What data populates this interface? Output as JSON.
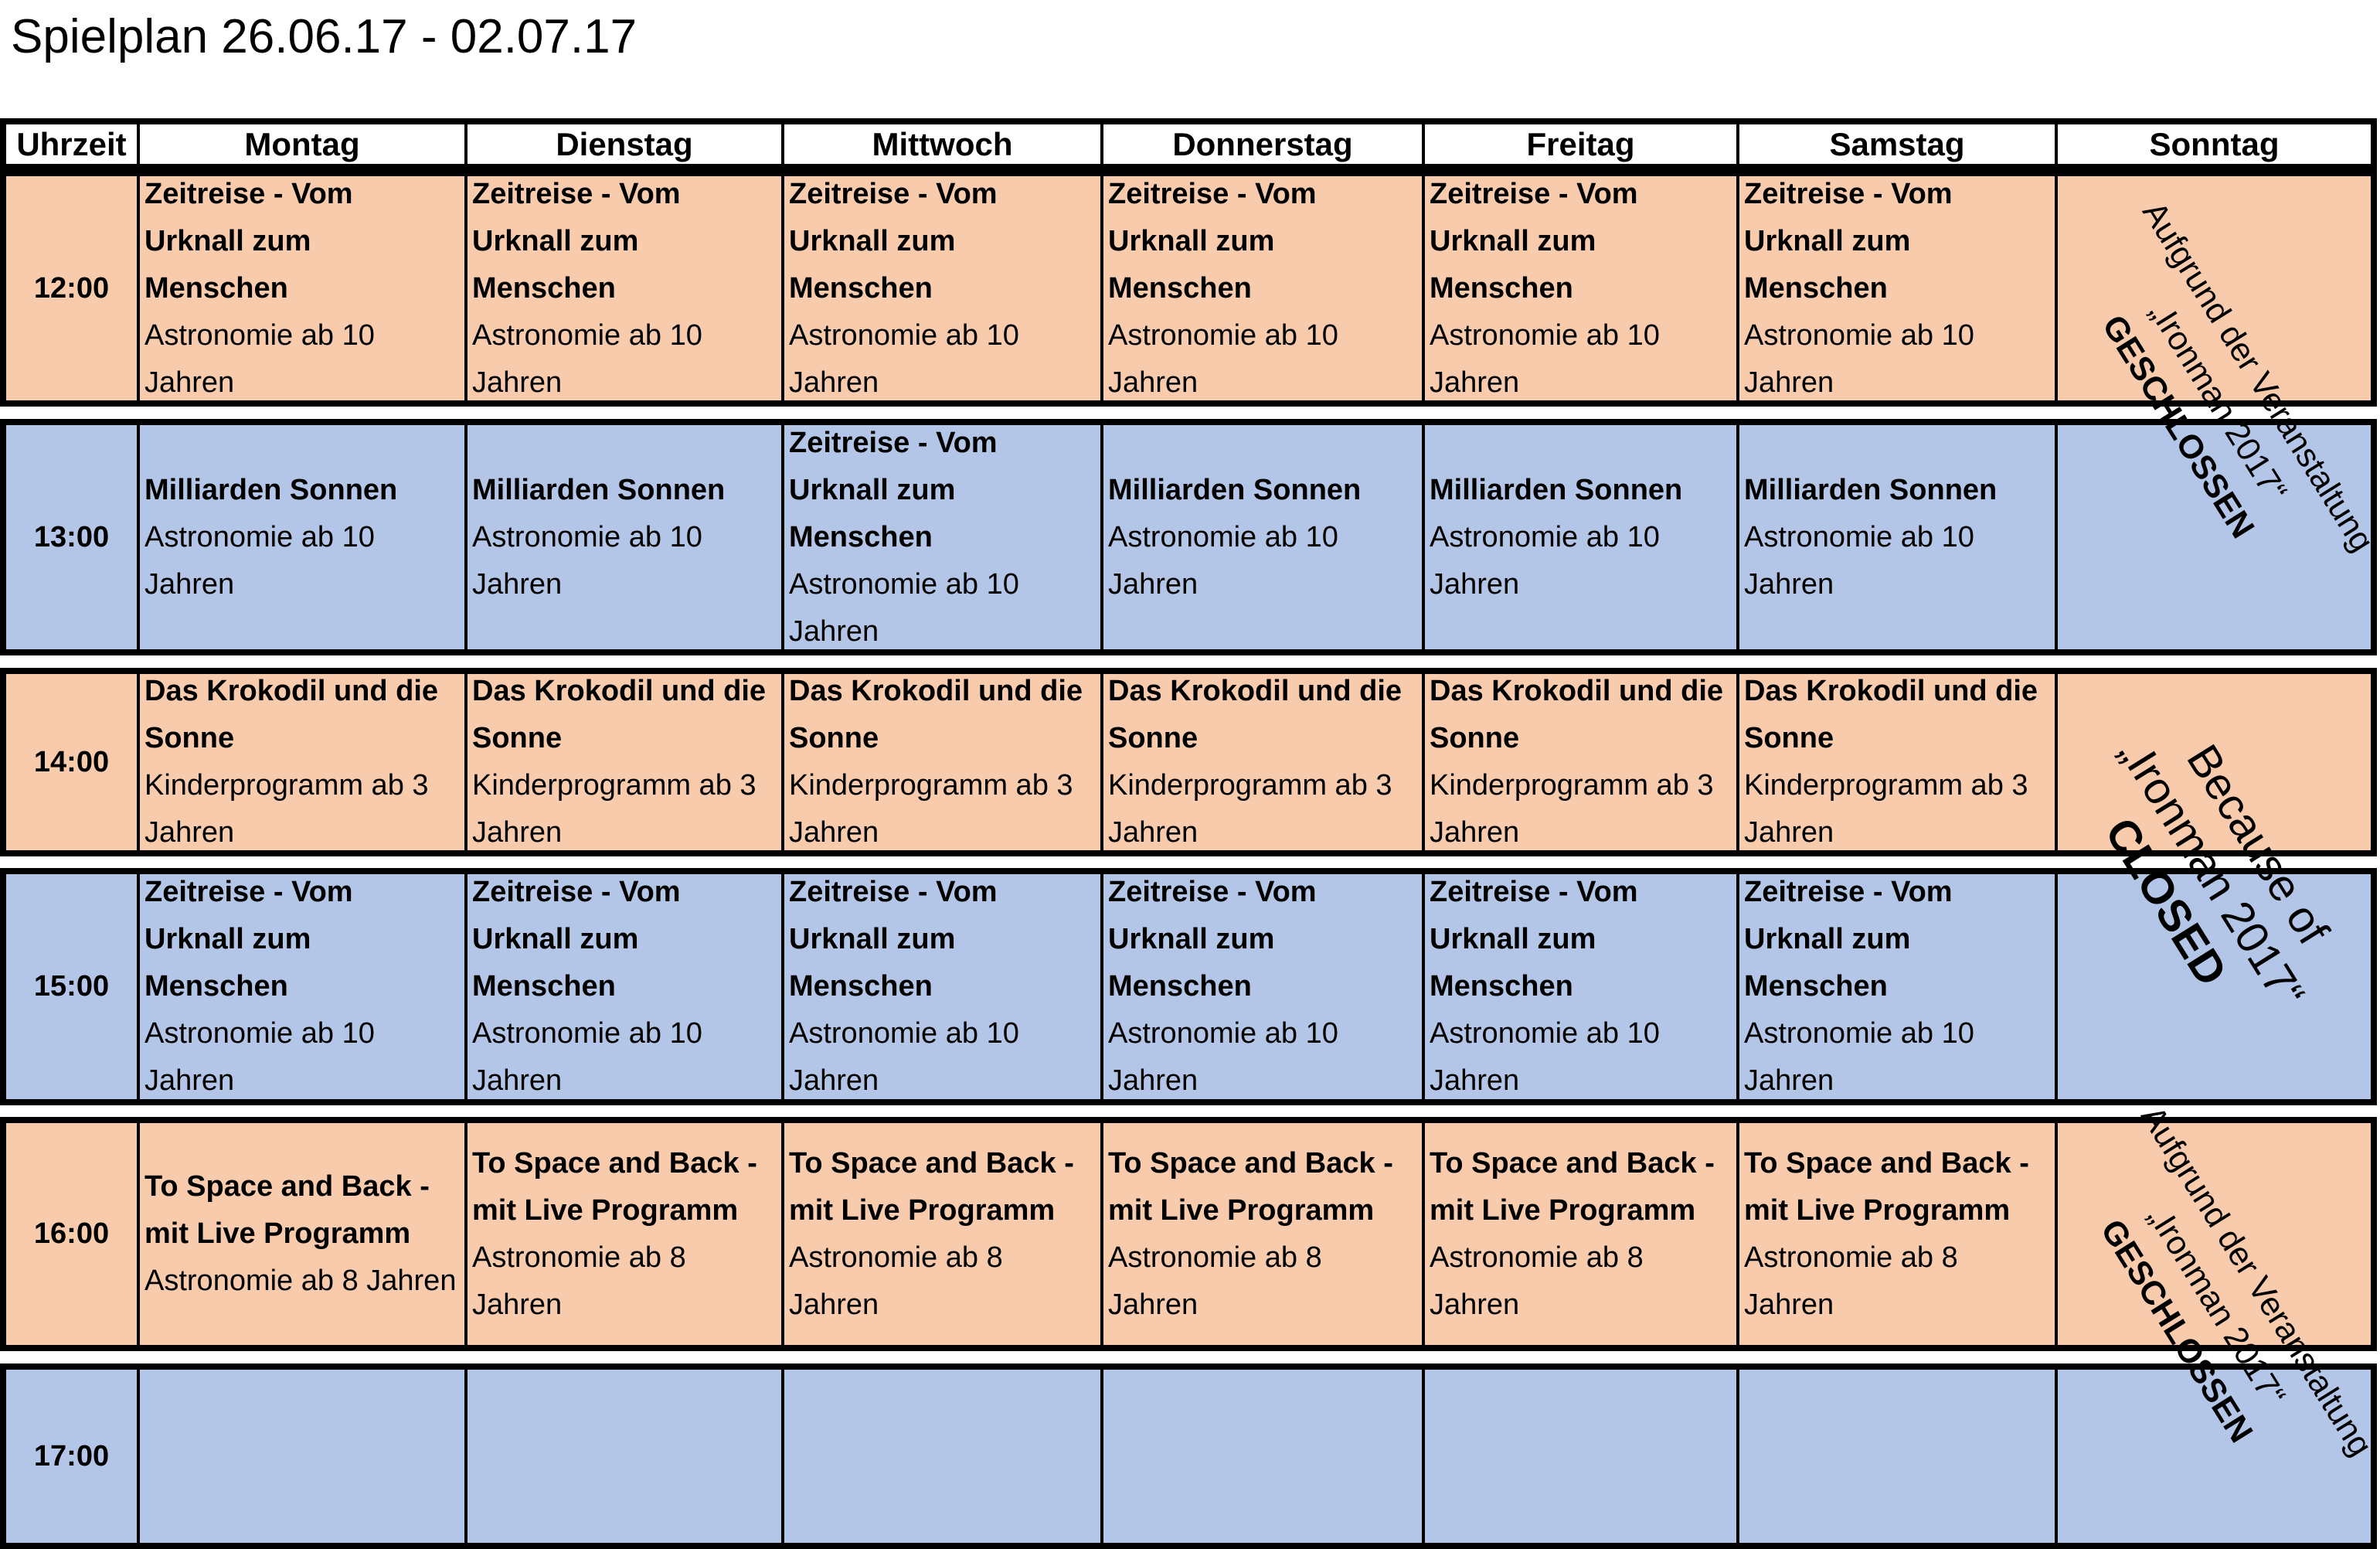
{
  "title": "Spielplan 26.06.17 - 02.07.17",
  "header": [
    "Uhrzeit",
    "Montag",
    "Dienstag",
    "Mittwoch",
    "Donnerstag",
    "Freitag",
    "Samstag",
    "Sonntag"
  ],
  "colors": {
    "peach": "#F8CBAD",
    "blue": "#B4C6E7",
    "border": "#000000"
  },
  "rows": [
    {
      "time": "12:00",
      "color": "peach",
      "cells": [
        {
          "title": "Zeitreise  - Vom Urknall zum Menschen",
          "subtitle": "Astronomie ab 10 Jahren"
        },
        {
          "title": "Zeitreise  - Vom Urknall zum Menschen",
          "subtitle": "Astronomie ab 10 Jahren"
        },
        {
          "title": "Zeitreise  - Vom Urknall zum Menschen",
          "subtitle": "Astronomie ab 10 Jahren"
        },
        {
          "title": "Zeitreise  - Vom Urknall zum Menschen",
          "subtitle": "Astronomie ab 10 Jahren"
        },
        {
          "title": "Zeitreise  - Vom Urknall zum Menschen",
          "subtitle": "Astronomie ab 10 Jahren"
        },
        {
          "title": "Zeitreise  - Vom Urknall zum Menschen",
          "subtitle": "Astronomie ab 10 Jahren"
        },
        {
          "title": "",
          "subtitle": ""
        }
      ]
    },
    {
      "time": "13:00",
      "color": "blue",
      "cells": [
        {
          "title": "Milliarden Sonnen",
          "subtitle": "Astronomie ab 10 Jahren"
        },
        {
          "title": "Milliarden Sonnen",
          "subtitle": "Astronomie ab 10 Jahren"
        },
        {
          "title": "Zeitreise  - Vom Urknall zum Menschen",
          "subtitle": "Astronomie ab 10 Jahren"
        },
        {
          "title": "Milliarden Sonnen",
          "subtitle": "Astronomie ab 10 Jahren"
        },
        {
          "title": "Milliarden Sonnen",
          "subtitle": "Astronomie ab 10 Jahren"
        },
        {
          "title": "Milliarden Sonnen",
          "subtitle": "Astronomie ab 10 Jahren"
        },
        {
          "title": "",
          "subtitle": ""
        }
      ]
    },
    {
      "time": "14:00",
      "color": "peach",
      "cells": [
        {
          "title": "Das Krokodil und die Sonne",
          "subtitle": "Kinderprogramm ab 3 Jahren"
        },
        {
          "title": "Das Krokodil und die Sonne",
          "subtitle": "Kinderprogramm ab 3 Jahren"
        },
        {
          "title": "Das Krokodil und die Sonne",
          "subtitle": "Kinderprogramm ab 3 Jahren"
        },
        {
          "title": "Das Krokodil und die Sonne",
          "subtitle": "Kinderprogramm ab 3 Jahren"
        },
        {
          "title": "Das Krokodil und die Sonne",
          "subtitle": "Kinderprogramm ab 3 Jahren"
        },
        {
          "title": "Das Krokodil und die Sonne",
          "subtitle": "Kinderprogramm ab 3 Jahren"
        },
        {
          "title": "",
          "subtitle": ""
        }
      ]
    },
    {
      "time": "15:00",
      "color": "blue",
      "cells": [
        {
          "title": "Zeitreise  - Vom Urknall zum Menschen",
          "subtitle": "Astronomie ab 10 Jahren"
        },
        {
          "title": "Zeitreise  - Vom Urknall zum Menschen",
          "subtitle": "Astronomie ab 10 Jahren"
        },
        {
          "title": "Zeitreise  - Vom Urknall zum Menschen",
          "subtitle": "Astronomie ab 10 Jahren"
        },
        {
          "title": "Zeitreise  - Vom Urknall zum Menschen",
          "subtitle": "Astronomie ab 10 Jahren"
        },
        {
          "title": "Zeitreise  - Vom Urknall zum Menschen",
          "subtitle": "Astronomie ab 10 Jahren"
        },
        {
          "title": "Zeitreise  - Vom Urknall zum Menschen",
          "subtitle": "Astronomie ab 10 Jahren"
        },
        {
          "title": "",
          "subtitle": ""
        }
      ]
    },
    {
      "time": "16:00",
      "color": "peach",
      "cells": [
        {
          "title": "To Space and Back - mit Live Programm",
          "subtitle": "Astronomie ab 8 Jahren"
        },
        {
          "title": "To Space and Back - mit Live Programm",
          "subtitle": "Astronomie ab 8 Jahren"
        },
        {
          "title": "To Space and Back - mit Live Programm",
          "subtitle": "Astronomie ab 8 Jahren"
        },
        {
          "title": "To Space and Back - mit Live Programm",
          "subtitle": "Astronomie ab 8 Jahren"
        },
        {
          "title": "To Space and Back - mit Live Programm",
          "subtitle": "Astronomie ab 8 Jahren"
        },
        {
          "title": "To Space and Back - mit Live Programm",
          "subtitle": "Astronomie ab 8 Jahren"
        },
        {
          "title": "",
          "subtitle": ""
        }
      ]
    },
    {
      "time": "17:00",
      "color": "blue",
      "cells": [
        {
          "title": "",
          "subtitle": ""
        },
        {
          "title": "",
          "subtitle": ""
        },
        {
          "title": "",
          "subtitle": ""
        },
        {
          "title": "",
          "subtitle": ""
        },
        {
          "title": "",
          "subtitle": ""
        },
        {
          "title": "",
          "subtitle": ""
        },
        {
          "title": "",
          "subtitle": ""
        }
      ]
    }
  ],
  "sunday_notices": [
    {
      "line1": "Aufgrund der Veranstaltung",
      "line2": "„Ironman 2017“",
      "line3": "GESCHLOSSEN"
    },
    {
      "line1": "Because of",
      "line2": "„Ironman 2017“",
      "line3": "CLOSED"
    },
    {
      "line1": "Aufgrund der Veranstaltung",
      "line2": "„Ironman 2017“",
      "line3": "GESCHLOSSEN"
    }
  ]
}
